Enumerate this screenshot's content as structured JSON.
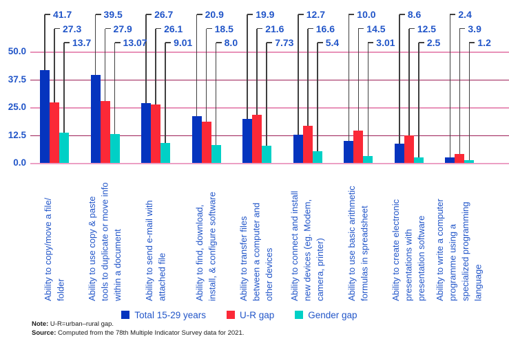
{
  "chart_data": {
    "type": "bar",
    "ylim": [
      0,
      50
    ],
    "y_ticks": [
      "0.0",
      "12.5",
      "25.0",
      "37.5",
      "50.0"
    ],
    "grid": "horizontal",
    "legend_position": "bottom",
    "categories": [
      {
        "lines": [
          "Ability to copy/move a file/",
          "folder"
        ]
      },
      {
        "lines": [
          "Ability to use copy & paste",
          "tools to duplicate or move info",
          "within a document"
        ]
      },
      {
        "lines": [
          "Ability to send e-mail with",
          "attached file"
        ]
      },
      {
        "lines": [
          "Ability to find, download,",
          "install, & configure software"
        ]
      },
      {
        "lines": [
          "Ability to transfer files",
          "between a computer and",
          "other devices"
        ]
      },
      {
        "lines": [
          "Ability to connect and install",
          "new devices (eg. Modem,",
          "camera, printer)"
        ]
      },
      {
        "lines": [
          "Ability to use basic arithmetic",
          "formulas in spreadsheet"
        ]
      },
      {
        "lines": [
          "Ability to create electronic",
          "presentations with",
          "presentation software"
        ]
      },
      {
        "lines": [
          "Ability to write a computer",
          "programme using a",
          "specialized programming",
          "language"
        ]
      }
    ],
    "series": [
      {
        "name": "Total 15-29 years",
        "color": "#0534BE",
        "values": [
          41.7,
          39.5,
          26.7,
          20.9,
          19.9,
          12.7,
          10.0,
          8.6,
          2.4
        ],
        "labels": [
          "41.7",
          "39.5",
          "26.7",
          "20.9",
          "19.9",
          "12.7",
          "10.0",
          "8.6",
          "2.4"
        ]
      },
      {
        "name": "U-R gap",
        "color": "#FB2937",
        "values": [
          27.3,
          27.9,
          26.1,
          18.5,
          21.6,
          16.6,
          14.5,
          12.5,
          3.9
        ],
        "labels": [
          "27.3",
          "27.9",
          "26.1",
          "18.5",
          "21.6",
          "16.6",
          "14.5",
          "12.5",
          "3.9"
        ]
      },
      {
        "name": "Gender gap",
        "color": "#00D0C6",
        "values": [
          13.7,
          13.07,
          9.01,
          8.0,
          7.73,
          5.4,
          3.01,
          2.5,
          1.2
        ],
        "labels": [
          "13.7",
          "13.07",
          "9.01",
          "8.0",
          "7.73",
          "5.4",
          "3.01",
          "2.5",
          "1.2"
        ]
      }
    ]
  },
  "notes": {
    "note_label": "Note:",
    "note_text": " U-R=urban–rural gap.",
    "source_label": "Source:",
    "source_text": " Computed from the 78th Multiple Indicator Survey data for 2021."
  },
  "colors": {
    "text_blue": "#2155C8",
    "grid_dark": "#9C1C55",
    "grid_light": "#E891B8",
    "baseline": "#EC9FC4",
    "callout_line": "#3F3F3F"
  }
}
